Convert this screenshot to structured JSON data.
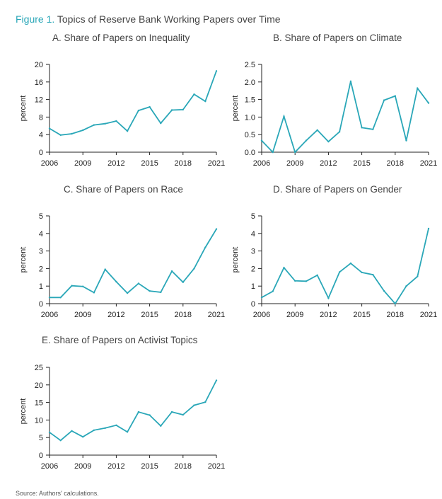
{
  "figure": {
    "label": "Figure 1.",
    "title": "Topics of Reserve Bank Working Papers over Time",
    "source": "Source: Authors' calculations.",
    "line_color": "#2aa7b8"
  },
  "chart_data": [
    {
      "type": "line",
      "title": "A. Share of Papers on Inequality",
      "xlabel": "",
      "ylabel": "percent",
      "x": [
        2006,
        2007,
        2008,
        2009,
        2010,
        2011,
        2012,
        2013,
        2014,
        2015,
        2016,
        2017,
        2018,
        2019,
        2020,
        2021
      ],
      "series": [
        {
          "values": [
            5.4,
            3.9,
            4.2,
            5.0,
            6.2,
            6.5,
            7.1,
            4.8,
            9.5,
            10.3,
            6.6,
            9.6,
            9.7,
            13.2,
            11.6,
            18.5
          ]
        }
      ],
      "xticks": [
        2006,
        2009,
        2012,
        2015,
        2018,
        2021
      ],
      "yticks": [
        0,
        4,
        8,
        12,
        16,
        20
      ],
      "ylim": [
        0,
        20
      ],
      "grid": false
    },
    {
      "type": "line",
      "title": "B. Share of Papers on Climate",
      "xlabel": "",
      "ylabel": "percent",
      "x": [
        2006,
        2007,
        2008,
        2009,
        2010,
        2011,
        2012,
        2013,
        2014,
        2015,
        2016,
        2017,
        2018,
        2019,
        2020,
        2021
      ],
      "series": [
        {
          "values": [
            0.33,
            0.0,
            1.02,
            0.0,
            0.33,
            0.63,
            0.3,
            0.58,
            2.02,
            0.7,
            0.65,
            1.48,
            1.6,
            0.33,
            1.82,
            1.4
          ]
        }
      ],
      "xticks": [
        2006,
        2009,
        2012,
        2015,
        2018,
        2021
      ],
      "yticks": [
        0.0,
        0.5,
        1.0,
        1.5,
        2.0,
        2.5
      ],
      "ylim": [
        0,
        2.5
      ],
      "grid": false
    },
    {
      "type": "line",
      "title": "C. Share of Papers on Race",
      "xlabel": "",
      "ylabel": "percent",
      "x": [
        2006,
        2007,
        2008,
        2009,
        2010,
        2011,
        2012,
        2013,
        2014,
        2015,
        2016,
        2017,
        2018,
        2019,
        2020,
        2021
      ],
      "series": [
        {
          "values": [
            0.35,
            0.35,
            1.02,
            0.98,
            0.63,
            1.95,
            1.25,
            0.6,
            1.15,
            0.72,
            0.65,
            1.85,
            1.22,
            2.0,
            3.2,
            4.25
          ]
        }
      ],
      "xticks": [
        2006,
        2009,
        2012,
        2015,
        2018,
        2021
      ],
      "yticks": [
        0,
        1,
        2,
        3,
        4,
        5
      ],
      "ylim": [
        0,
        5
      ],
      "grid": false
    },
    {
      "type": "line",
      "title": "D. Share of Papers on Gender",
      "xlabel": "",
      "ylabel": "percent",
      "x": [
        2006,
        2007,
        2008,
        2009,
        2010,
        2011,
        2012,
        2013,
        2014,
        2015,
        2016,
        2017,
        2018,
        2019,
        2020,
        2021
      ],
      "series": [
        {
          "values": [
            0.35,
            0.7,
            2.05,
            1.3,
            1.28,
            1.62,
            0.32,
            1.8,
            2.3,
            1.78,
            1.65,
            0.72,
            0.0,
            1.0,
            1.55,
            4.28
          ]
        }
      ],
      "xticks": [
        2006,
        2009,
        2012,
        2015,
        2018,
        2021
      ],
      "yticks": [
        0,
        1,
        2,
        3,
        4,
        5
      ],
      "ylim": [
        0,
        5
      ],
      "grid": false
    },
    {
      "type": "line",
      "title": "E. Share of Papers on Activist Topics",
      "xlabel": "",
      "ylabel": "percent",
      "x": [
        2006,
        2007,
        2008,
        2009,
        2010,
        2011,
        2012,
        2013,
        2014,
        2015,
        2016,
        2017,
        2018,
        2019,
        2020,
        2021
      ],
      "series": [
        {
          "values": [
            6.5,
            4.2,
            6.9,
            5.2,
            7.1,
            7.7,
            8.5,
            6.6,
            12.3,
            11.4,
            8.3,
            12.3,
            11.5,
            14.2,
            15.1,
            21.3
          ]
        }
      ],
      "xticks": [
        2006,
        2009,
        2012,
        2015,
        2018,
        2021
      ],
      "yticks": [
        0,
        5,
        10,
        15,
        20,
        25
      ],
      "ylim": [
        0,
        25
      ],
      "grid": false
    }
  ]
}
